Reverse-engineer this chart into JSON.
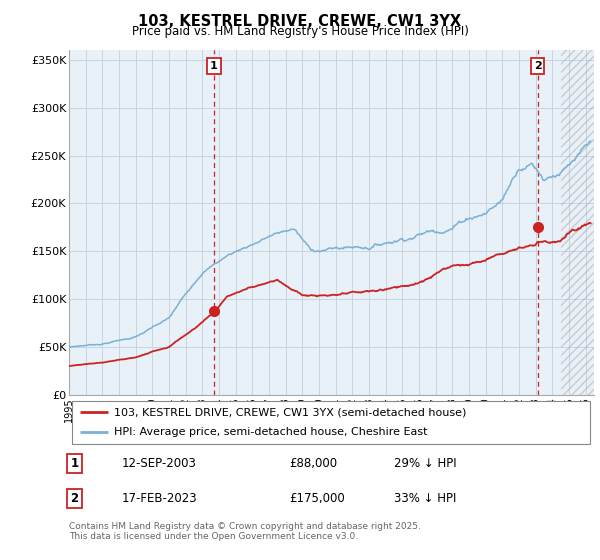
{
  "title": "103, KESTREL DRIVE, CREWE, CW1 3YX",
  "subtitle": "Price paid vs. HM Land Registry's House Price Index (HPI)",
  "ylabel_ticks": [
    "£0",
    "£50K",
    "£100K",
    "£150K",
    "£200K",
    "£250K",
    "£300K",
    "£350K"
  ],
  "ytick_values": [
    0,
    50000,
    100000,
    150000,
    200000,
    250000,
    300000,
    350000
  ],
  "ylim": [
    0,
    360000
  ],
  "xlim_start": 1995.0,
  "xlim_end": 2026.5,
  "hpi_color": "#7ab0d4",
  "property_color": "#cc2222",
  "vline_color": "#cc2222",
  "purchase1_x": 2003.7,
  "purchase1_y": 88000,
  "purchase1_label": "1",
  "purchase1_date": "12-SEP-2003",
  "purchase1_price": "£88,000",
  "purchase1_hpi": "29% ↓ HPI",
  "purchase2_x": 2023.12,
  "purchase2_y": 175000,
  "purchase2_label": "2",
  "purchase2_date": "17-FEB-2023",
  "purchase2_price": "£175,000",
  "purchase2_hpi": "33% ↓ HPI",
  "legend_property": "103, KESTREL DRIVE, CREWE, CW1 3YX (semi-detached house)",
  "legend_hpi": "HPI: Average price, semi-detached house, Cheshire East",
  "footer": "Contains HM Land Registry data © Crown copyright and database right 2025.\nThis data is licensed under the Open Government Licence v3.0.",
  "background_color": "#ffffff",
  "chart_bg_color": "#e8f0f8",
  "grid_color": "#c8d4e0"
}
